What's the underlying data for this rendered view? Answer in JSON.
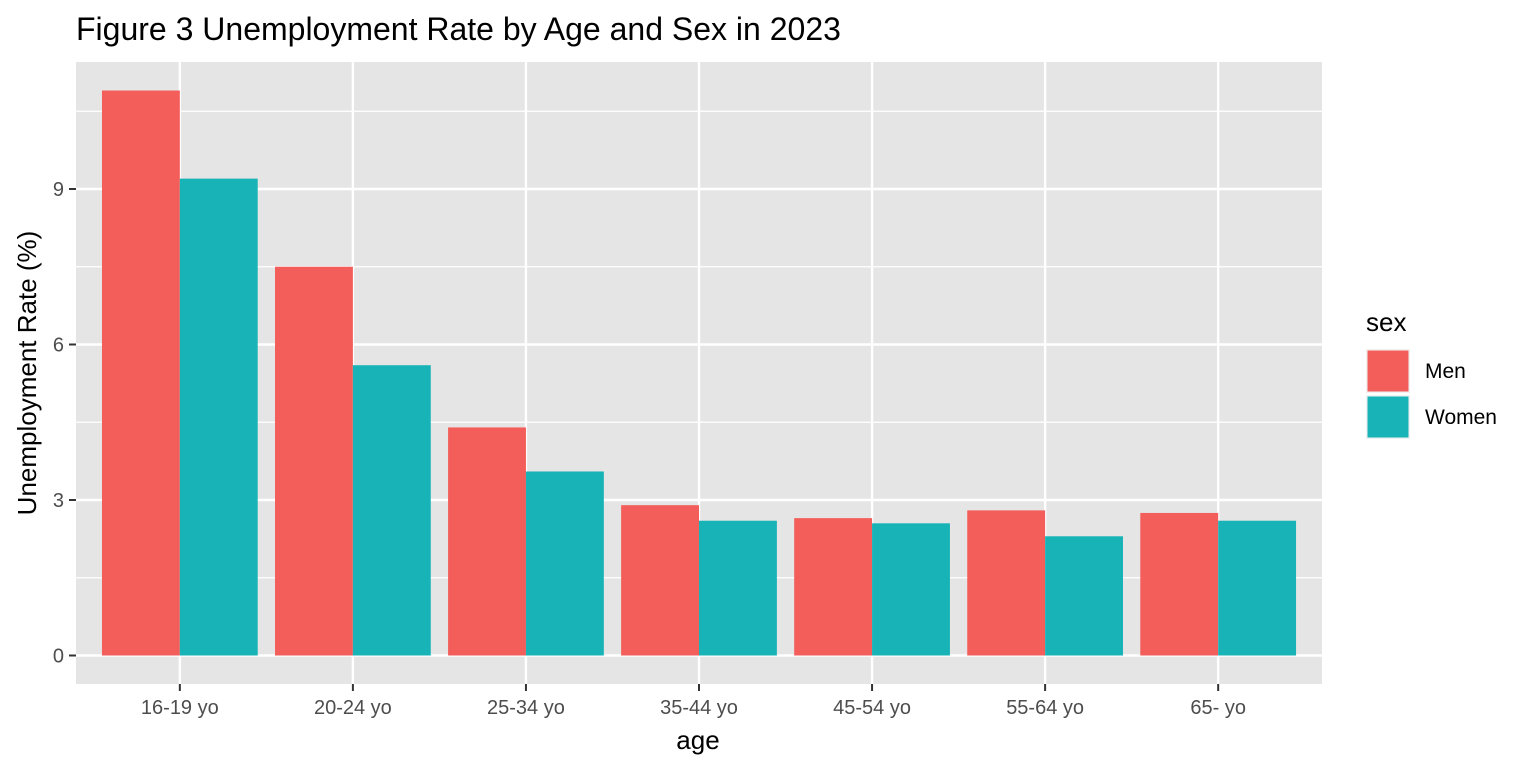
{
  "chart_data": {
    "type": "bar",
    "title": "Figure 3 Unemployment Rate by Age and Sex in 2023",
    "xlabel": "age",
    "ylabel": "Unemployment Rate (%)",
    "categories": [
      "16-19 yo",
      "20-24 yo",
      "25-34 yo",
      "35-44 yo",
      "45-54 yo",
      "55-64 yo",
      "65- yo"
    ],
    "series": [
      {
        "name": "Men",
        "color": "#F35E5A",
        "values": [
          10.9,
          7.5,
          4.4,
          2.9,
          2.65,
          2.8,
          2.75
        ]
      },
      {
        "name": "Women",
        "color": "#17B3B7",
        "values": [
          9.2,
          5.6,
          3.55,
          2.6,
          2.55,
          2.3,
          2.6
        ]
      }
    ],
    "ylim": [
      -0.55,
      11.45
    ],
    "yticks": [
      0,
      3,
      6,
      9
    ],
    "grid": true,
    "legend": {
      "title": "sex",
      "position": "right"
    },
    "panel_background": "#E5E5E5"
  }
}
